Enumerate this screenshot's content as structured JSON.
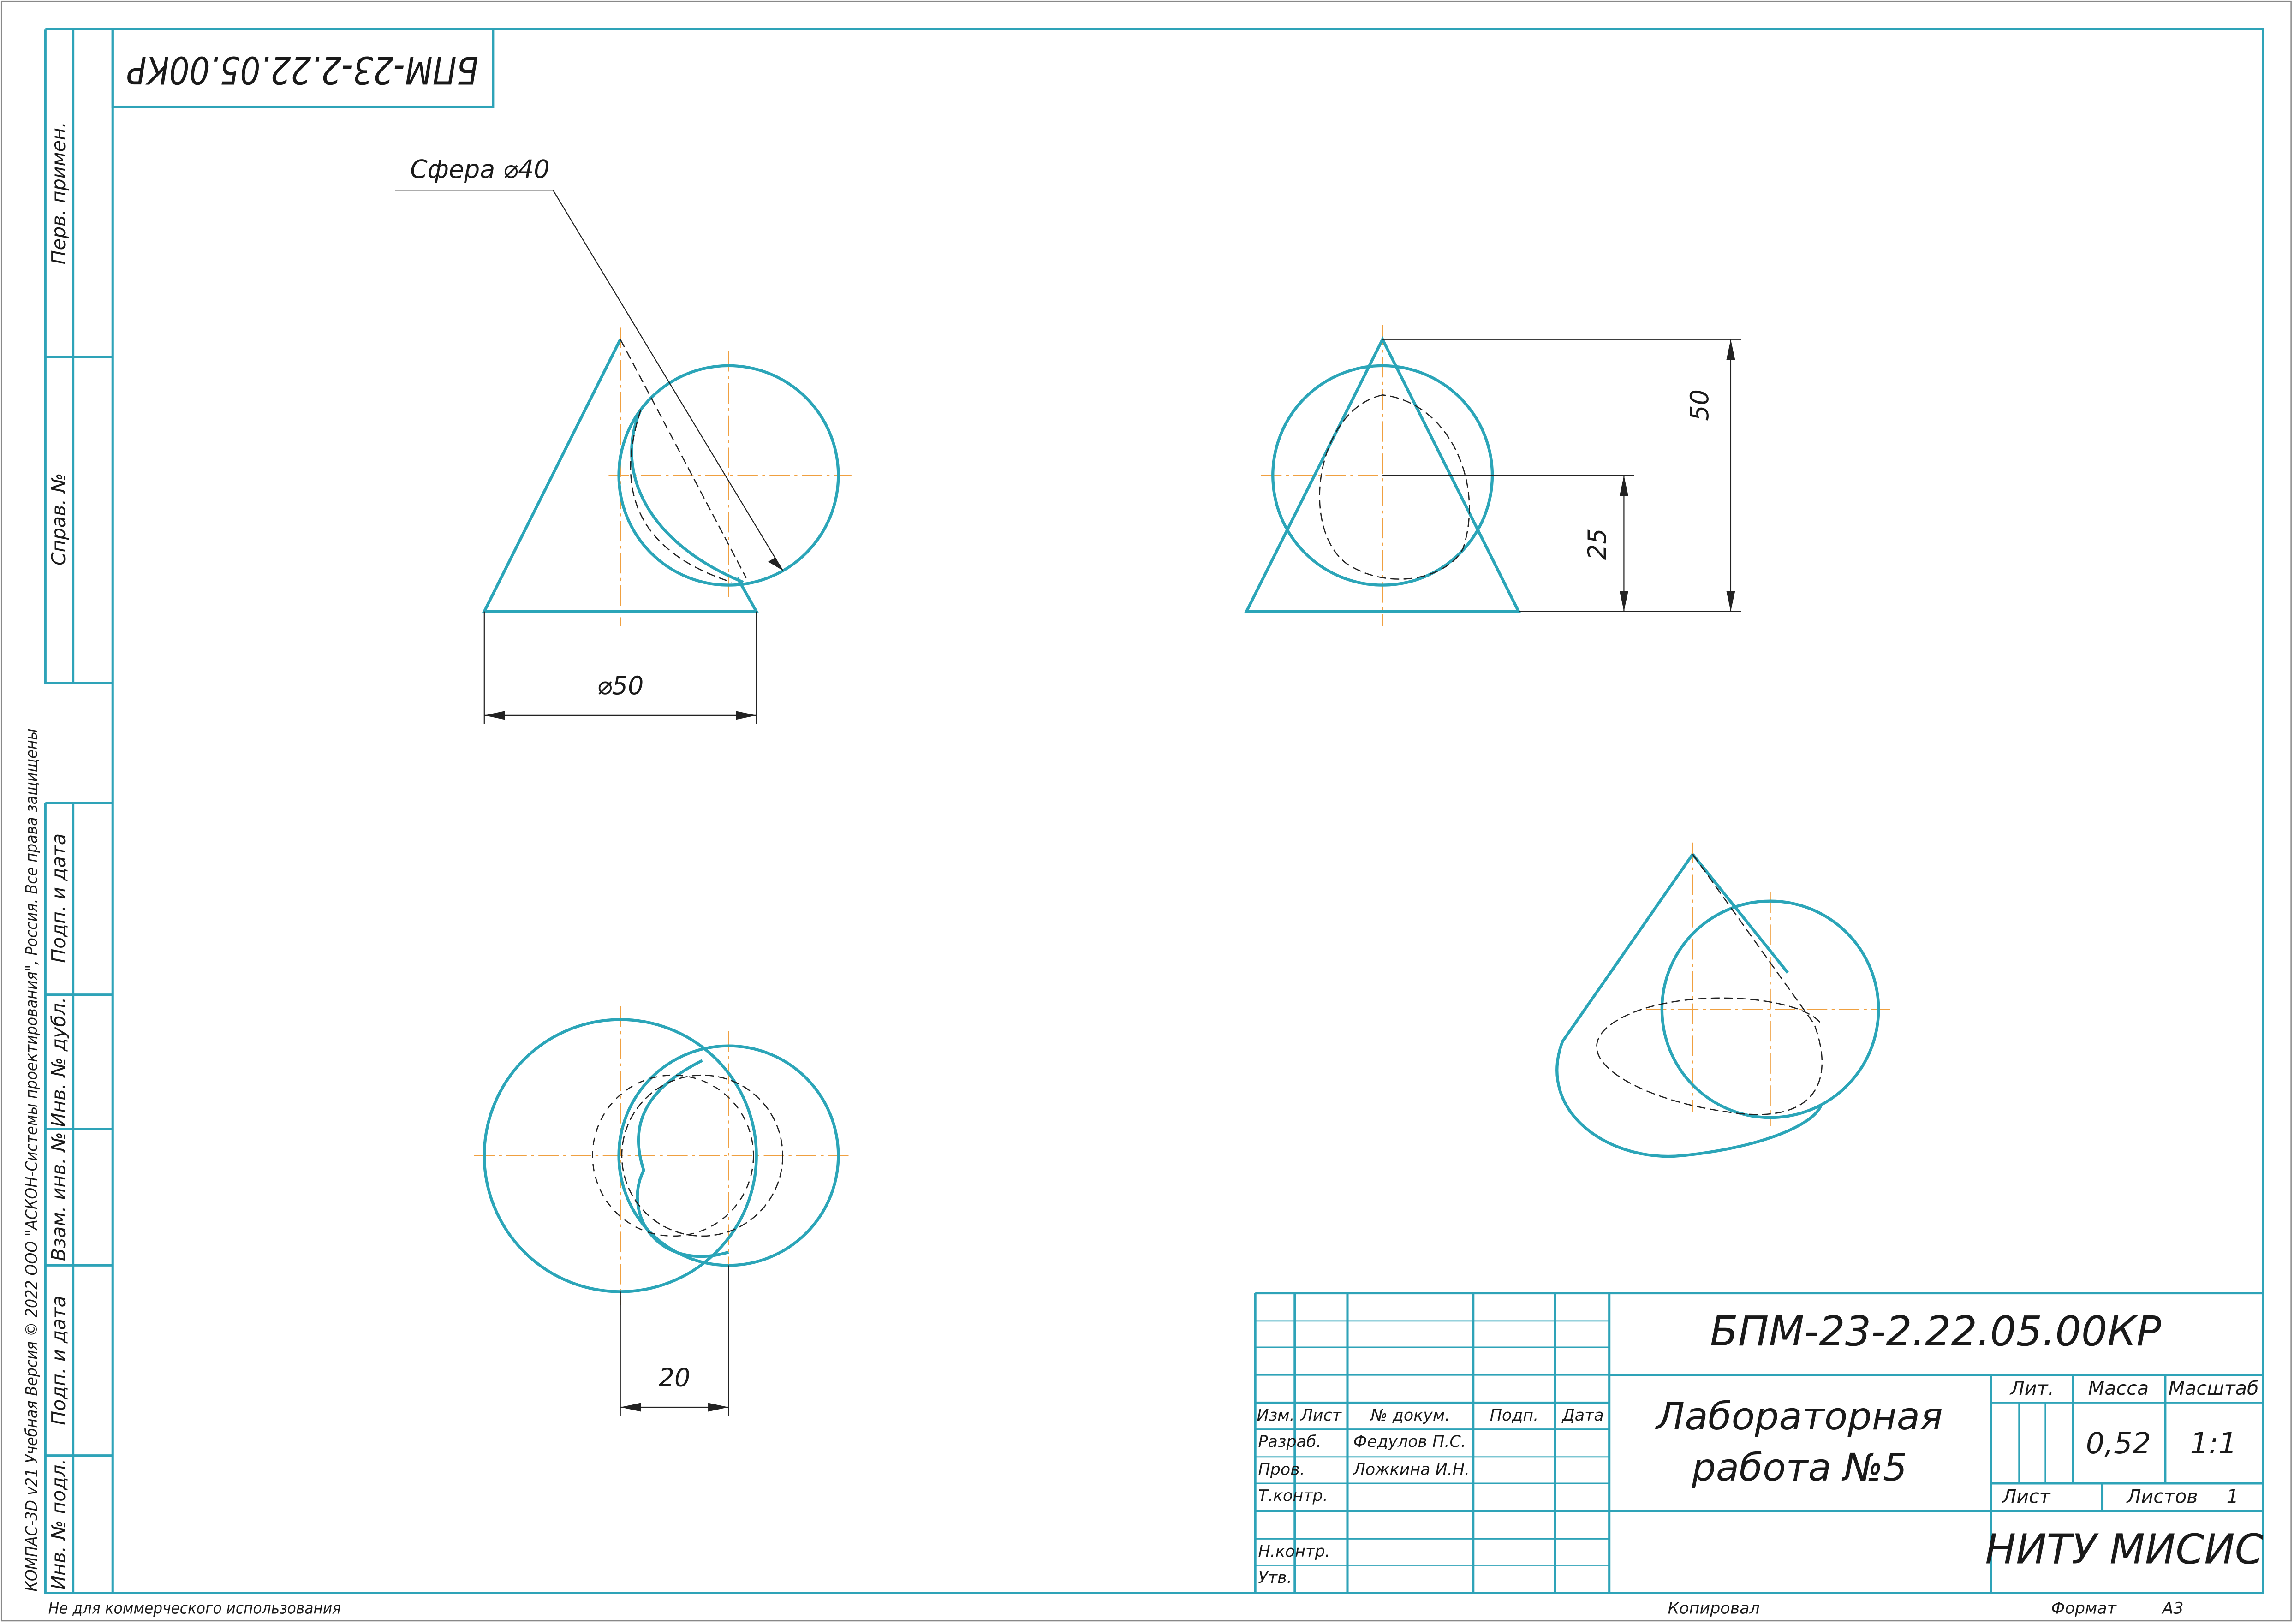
{
  "stamp_rotated": "БПМ-23-2.22.05.00КР",
  "views": {
    "sphere_label": "Сфера ⌀40",
    "dim_base": "⌀50",
    "dim_height": "50",
    "dim_center": "25",
    "dim_offset": "20"
  },
  "side_strip": {
    "top": [
      "Перв. примен.",
      "Справ. №"
    ],
    "bottom": [
      "Подп. и дата",
      "Инв. № дубл.",
      "Взам. инв. №",
      "Подп. и дата",
      "Инв. № подл."
    ]
  },
  "copyright": "КОМПАС-3D v21 Учебная Версия © 2022 ООО \"АСКОН-Системы проектирования\", Россия. Все права защищены",
  "title_block": {
    "designation": "БПМ-23-2.22.05.00КР",
    "name": [
      "Лабораторная",
      "работа №5"
    ],
    "headers": [
      "Изм.",
      "Лист",
      "№ докум.",
      "Подп.",
      "Дата"
    ],
    "rows": [
      [
        "Разраб.",
        "Федулов П.С."
      ],
      [
        "Пров.",
        "Ложкина И.Н."
      ],
      [
        "Т.контр."
      ],
      [
        "Н.контр."
      ],
      [
        "Утв."
      ]
    ],
    "lit_label": "Лит.",
    "mass_label": "Масса",
    "scale_label": "Масштаб",
    "mass": "0,52",
    "scale": "1:1",
    "sheet_label": "Лист",
    "sheets_label": "Листов",
    "sheets": "1",
    "organization": "НИТУ МИСИС"
  },
  "footer": {
    "notice": "Не для коммерческого использования",
    "copied": "Копировал",
    "format_label": "Формат",
    "format": "А3"
  }
}
